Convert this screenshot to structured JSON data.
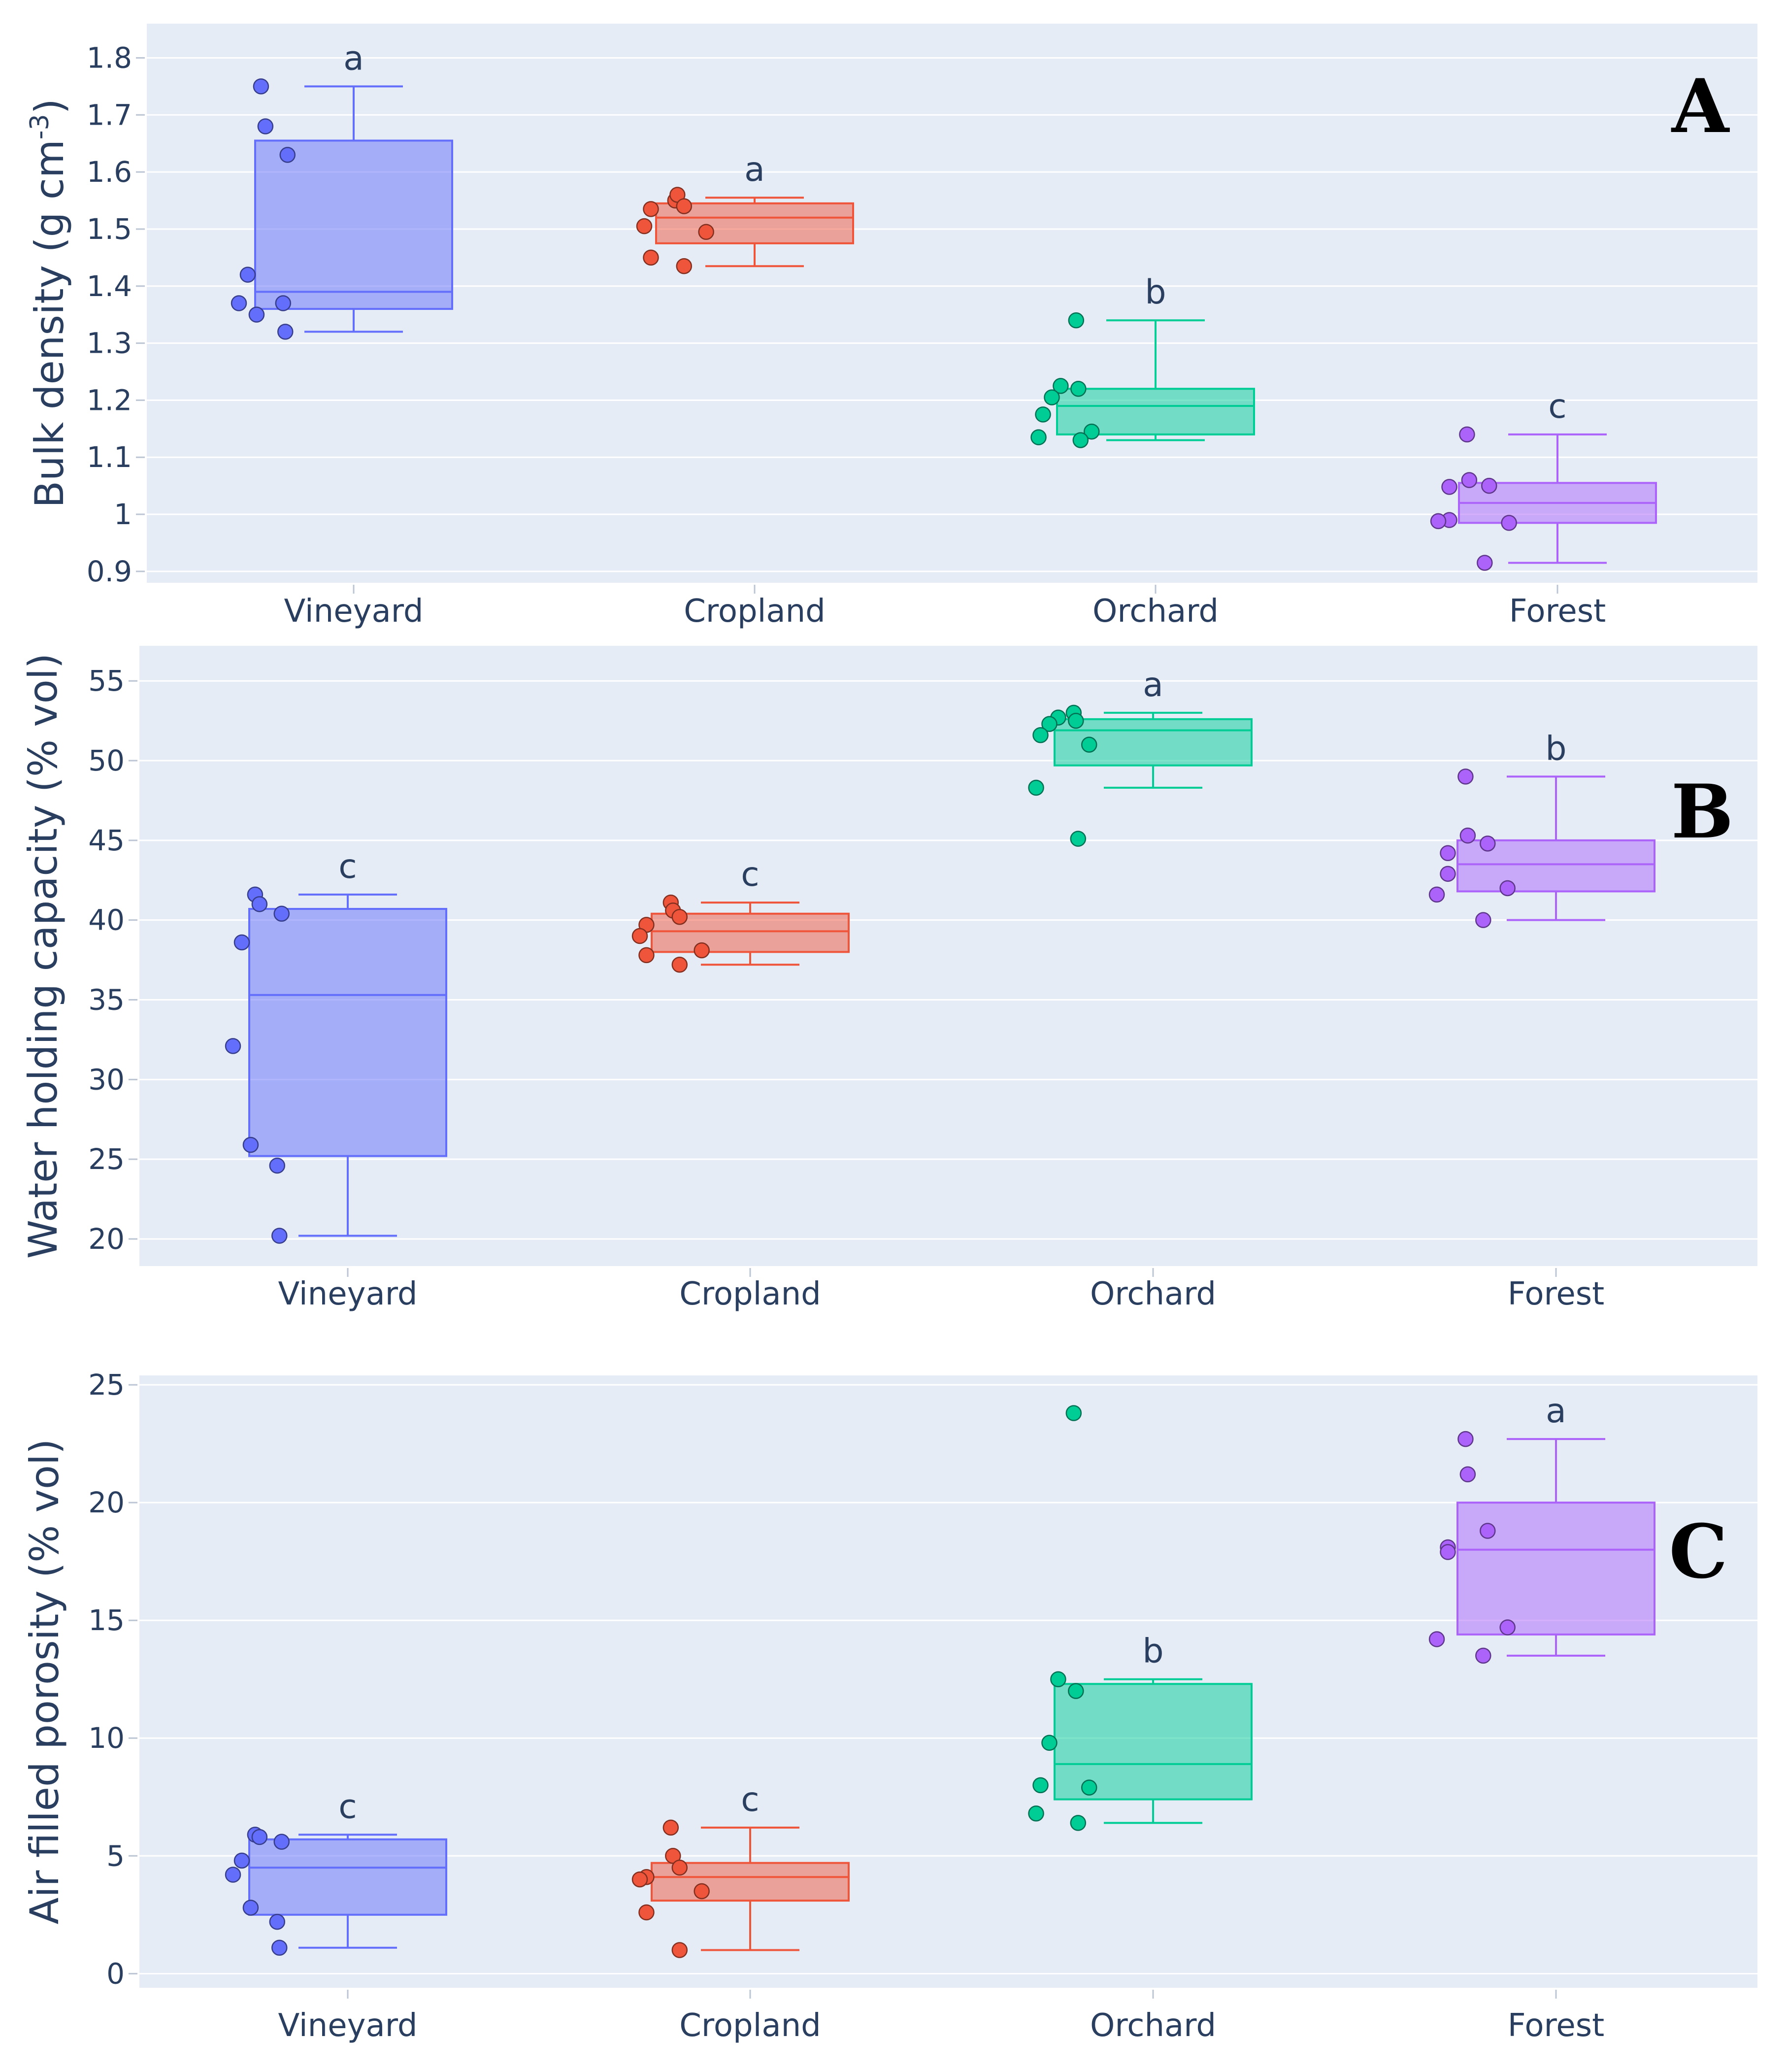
{
  "categories": [
    "Vineyard",
    "Cropland",
    "Orchard",
    "Forest"
  ],
  "colors": {
    "Vineyard": "#636efa",
    "Cropland": "#ef553b",
    "Orchard": "#00cc96",
    "Forest": "#ab63fa",
    "plot_background": "#e5ecf6",
    "gridline": "#ffffff",
    "text": "#2a3f5f"
  },
  "chart_data": [
    {
      "type": "box",
      "panel_label": "A",
      "ylabel": "Bulk density (g cm",
      "ylabel_superscript": "-3",
      "ylabel_close": ")",
      "ylim": [
        0.88,
        1.86
      ],
      "yticks": [
        0.9,
        1.0,
        1.1,
        1.2,
        1.3,
        1.4,
        1.5,
        1.6,
        1.7,
        1.8
      ],
      "ytick_labels": [
        "0.9",
        "1",
        "1.1",
        "1.2",
        "1.3",
        "1.4",
        "1.5",
        "1.6",
        "1.7",
        "1.8"
      ],
      "categories": [
        "Vineyard",
        "Cropland",
        "Orchard",
        "Forest"
      ],
      "groups": [
        {
          "category": "Vineyard",
          "min": 1.32,
          "q1": 1.36,
          "median": 1.39,
          "q3": 1.655,
          "max": 1.75,
          "letter": "a",
          "points": [
            1.75,
            1.68,
            1.63,
            1.42,
            1.37,
            1.35,
            1.37,
            1.32
          ]
        },
        {
          "category": "Cropland",
          "min": 1.435,
          "q1": 1.475,
          "median": 1.52,
          "q3": 1.545,
          "max": 1.555,
          "letter": "a",
          "points": [
            1.55,
            1.56,
            1.54,
            1.535,
            1.505,
            1.495,
            1.45,
            1.435
          ]
        },
        {
          "category": "Orchard",
          "min": 1.13,
          "q1": 1.14,
          "median": 1.19,
          "q3": 1.22,
          "max": 1.34,
          "letter": "b",
          "points": [
            1.34,
            1.225,
            1.22,
            1.205,
            1.175,
            1.145,
            1.135,
            1.13
          ]
        },
        {
          "category": "Forest",
          "min": 0.915,
          "q1": 0.985,
          "median": 1.02,
          "q3": 1.055,
          "max": 1.14,
          "letter": "c",
          "points": [
            1.14,
            1.06,
            1.05,
            1.048,
            0.99,
            0.985,
            0.988,
            0.915
          ]
        }
      ]
    },
    {
      "type": "box",
      "panel_label": "B",
      "ylabel": "Water holding capacity (% vol)",
      "ylim": [
        18.3,
        57.2
      ],
      "yticks": [
        20,
        25,
        30,
        35,
        40,
        45,
        50,
        55
      ],
      "ytick_labels": [
        "20",
        "25",
        "30",
        "35",
        "40",
        "45",
        "50",
        "55"
      ],
      "categories": [
        "Vineyard",
        "Cropland",
        "Orchard",
        "Forest"
      ],
      "groups": [
        {
          "category": "Vineyard",
          "min": 20.2,
          "q1": 25.2,
          "median": 35.3,
          "q3": 40.7,
          "max": 41.6,
          "letter": "c",
          "points": [
            41.6,
            41.0,
            40.4,
            38.6,
            32.1,
            25.9,
            24.6,
            20.2
          ]
        },
        {
          "category": "Cropland",
          "min": 37.2,
          "q1": 38.0,
          "median": 39.3,
          "q3": 40.4,
          "max": 41.1,
          "letter": "c",
          "points": [
            41.1,
            40.6,
            40.2,
            39.7,
            39.0,
            38.1,
            37.8,
            37.2
          ]
        },
        {
          "category": "Orchard",
          "min": 48.3,
          "q1": 49.7,
          "median": 51.9,
          "q3": 52.6,
          "max": 53.0,
          "letter": "a",
          "points": [
            53.0,
            52.7,
            52.5,
            52.3,
            51.6,
            51.0,
            48.3,
            45.1
          ]
        },
        {
          "category": "Forest",
          "min": 40.0,
          "q1": 41.8,
          "median": 43.5,
          "q3": 45.0,
          "max": 49.0,
          "letter": "b",
          "points": [
            49.0,
            45.3,
            44.8,
            44.2,
            42.9,
            42.0,
            41.6,
            40.0
          ]
        }
      ]
    },
    {
      "type": "box",
      "panel_label": "C",
      "ylabel": "Air filled porosity (% vol)",
      "ylim": [
        -0.6,
        25.4
      ],
      "yticks": [
        0,
        5,
        10,
        15,
        20,
        25
      ],
      "ytick_labels": [
        "0",
        "5",
        "10",
        "15",
        "20",
        "25"
      ],
      "categories": [
        "Vineyard",
        "Cropland",
        "Orchard",
        "Forest"
      ],
      "groups": [
        {
          "category": "Vineyard",
          "min": 1.1,
          "q1": 2.5,
          "median": 4.5,
          "q3": 5.7,
          "max": 5.9,
          "letter": "c",
          "points": [
            5.9,
            5.8,
            5.6,
            4.8,
            4.2,
            2.8,
            2.2,
            1.1
          ]
        },
        {
          "category": "Cropland",
          "min": 1.0,
          "q1": 3.1,
          "median": 4.1,
          "q3": 4.7,
          "max": 6.2,
          "letter": "c",
          "points": [
            6.2,
            5.0,
            4.5,
            4.1,
            4.0,
            3.5,
            2.6,
            1.0
          ]
        },
        {
          "category": "Orchard",
          "min": 6.4,
          "q1": 7.4,
          "median": 8.9,
          "q3": 12.3,
          "max": 12.5,
          "letter": "b",
          "points": [
            23.8,
            12.5,
            12.0,
            9.8,
            8.0,
            7.9,
            6.8,
            6.4
          ]
        },
        {
          "category": "Forest",
          "min": 13.5,
          "q1": 14.4,
          "median": 18.0,
          "q3": 20.0,
          "max": 22.7,
          "letter": "a",
          "points": [
            22.7,
            21.2,
            18.8,
            18.1,
            17.9,
            14.7,
            14.2,
            13.5
          ]
        }
      ]
    }
  ]
}
